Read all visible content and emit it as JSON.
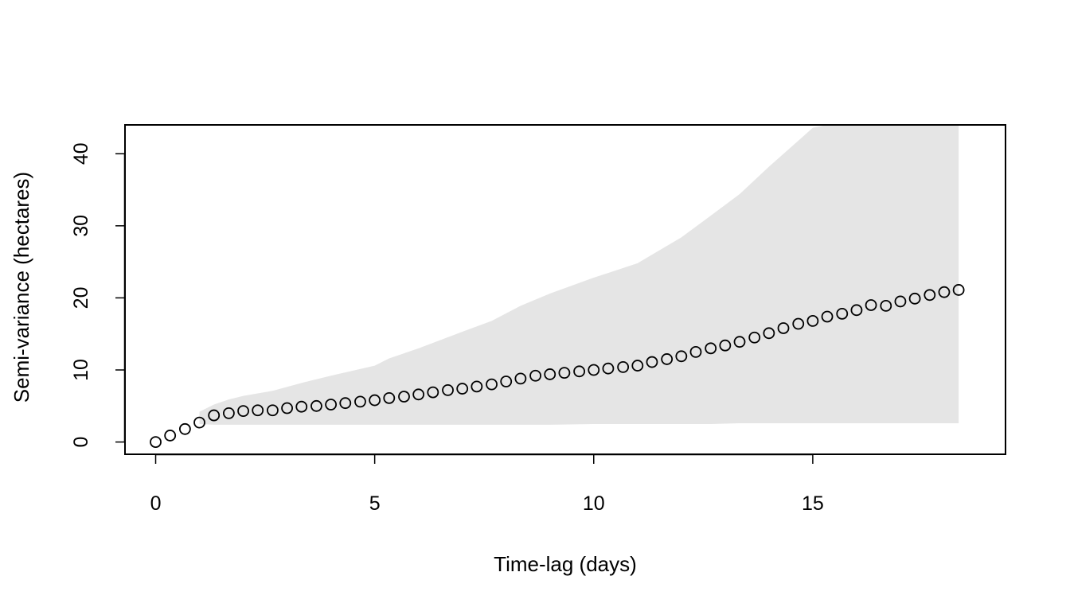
{
  "chart_data": {
    "type": "scatter",
    "xlabel": "Time-lag (days)",
    "ylabel": "Semi-variance (hectares)",
    "xlim": [
      -0.7,
      19.4
    ],
    "ylim": [
      -1.7,
      44.0
    ],
    "xticks": [
      0,
      5,
      10,
      15
    ],
    "yticks": [
      0,
      10,
      20,
      30,
      40
    ],
    "grid": false,
    "colors": {
      "band": "#e5e5e5",
      "points": "#000000",
      "frame": "#000000",
      "background": "#ffffff"
    },
    "points": {
      "x": [
        0,
        0.33,
        0.67,
        1.0,
        1.33,
        1.67,
        2.0,
        2.33,
        2.67,
        3.0,
        3.33,
        3.67,
        4.0,
        4.33,
        4.67,
        5.0,
        5.33,
        5.67,
        6.0,
        6.33,
        6.67,
        7.0,
        7.33,
        7.67,
        8.0,
        8.33,
        8.67,
        9.0,
        9.33,
        9.67,
        10.0,
        10.33,
        10.67,
        11.0,
        11.33,
        11.67,
        12.0,
        12.33,
        12.67,
        13.0,
        13.33,
        13.67,
        14.0,
        14.33,
        14.67,
        15.0,
        15.33,
        15.67,
        16.0,
        16.33,
        16.67,
        17.0,
        17.33,
        17.67,
        18.0,
        18.33
      ],
      "y": [
        0.0,
        0.9,
        1.8,
        2.7,
        3.7,
        4.0,
        4.3,
        4.4,
        4.4,
        4.7,
        4.9,
        5.0,
        5.2,
        5.4,
        5.6,
        5.8,
        6.1,
        6.3,
        6.6,
        6.9,
        7.2,
        7.4,
        7.7,
        8.0,
        8.4,
        8.8,
        9.2,
        9.4,
        9.6,
        9.8,
        10.0,
        10.2,
        10.4,
        10.6,
        11.1,
        11.5,
        11.9,
        12.5,
        13.0,
        13.4,
        13.9,
        14.5,
        15.1,
        15.8,
        16.4,
        16.8,
        17.4,
        17.8,
        18.3,
        19.0,
        18.9,
        19.5,
        19.9,
        20.4,
        20.8,
        21.1
      ]
    },
    "band": {
      "x": [
        1.0,
        1.33,
        1.67,
        2.0,
        2.67,
        3.33,
        4.0,
        5.0,
        5.33,
        6.0,
        7.0,
        7.67,
        8.33,
        9.0,
        10.0,
        11.0,
        11.33,
        12.0,
        12.67,
        13.33,
        14.0,
        14.67,
        15.0,
        15.33,
        18.33
      ],
      "upper": [
        4.2,
        5.2,
        5.9,
        6.4,
        7.1,
        8.2,
        9.2,
        10.6,
        11.6,
        13.0,
        15.3,
        16.8,
        18.9,
        20.6,
        22.8,
        24.8,
        26.0,
        28.4,
        31.4,
        34.4,
        38.2,
        41.8,
        43.6,
        44.0,
        44.0
      ],
      "lower": [
        2.5,
        2.4,
        2.4,
        2.4,
        2.4,
        2.4,
        2.4,
        2.4,
        2.4,
        2.4,
        2.4,
        2.4,
        2.4,
        2.4,
        2.5,
        2.5,
        2.5,
        2.5,
        2.5,
        2.6,
        2.6,
        2.6,
        2.6,
        2.6,
        2.6
      ]
    }
  }
}
